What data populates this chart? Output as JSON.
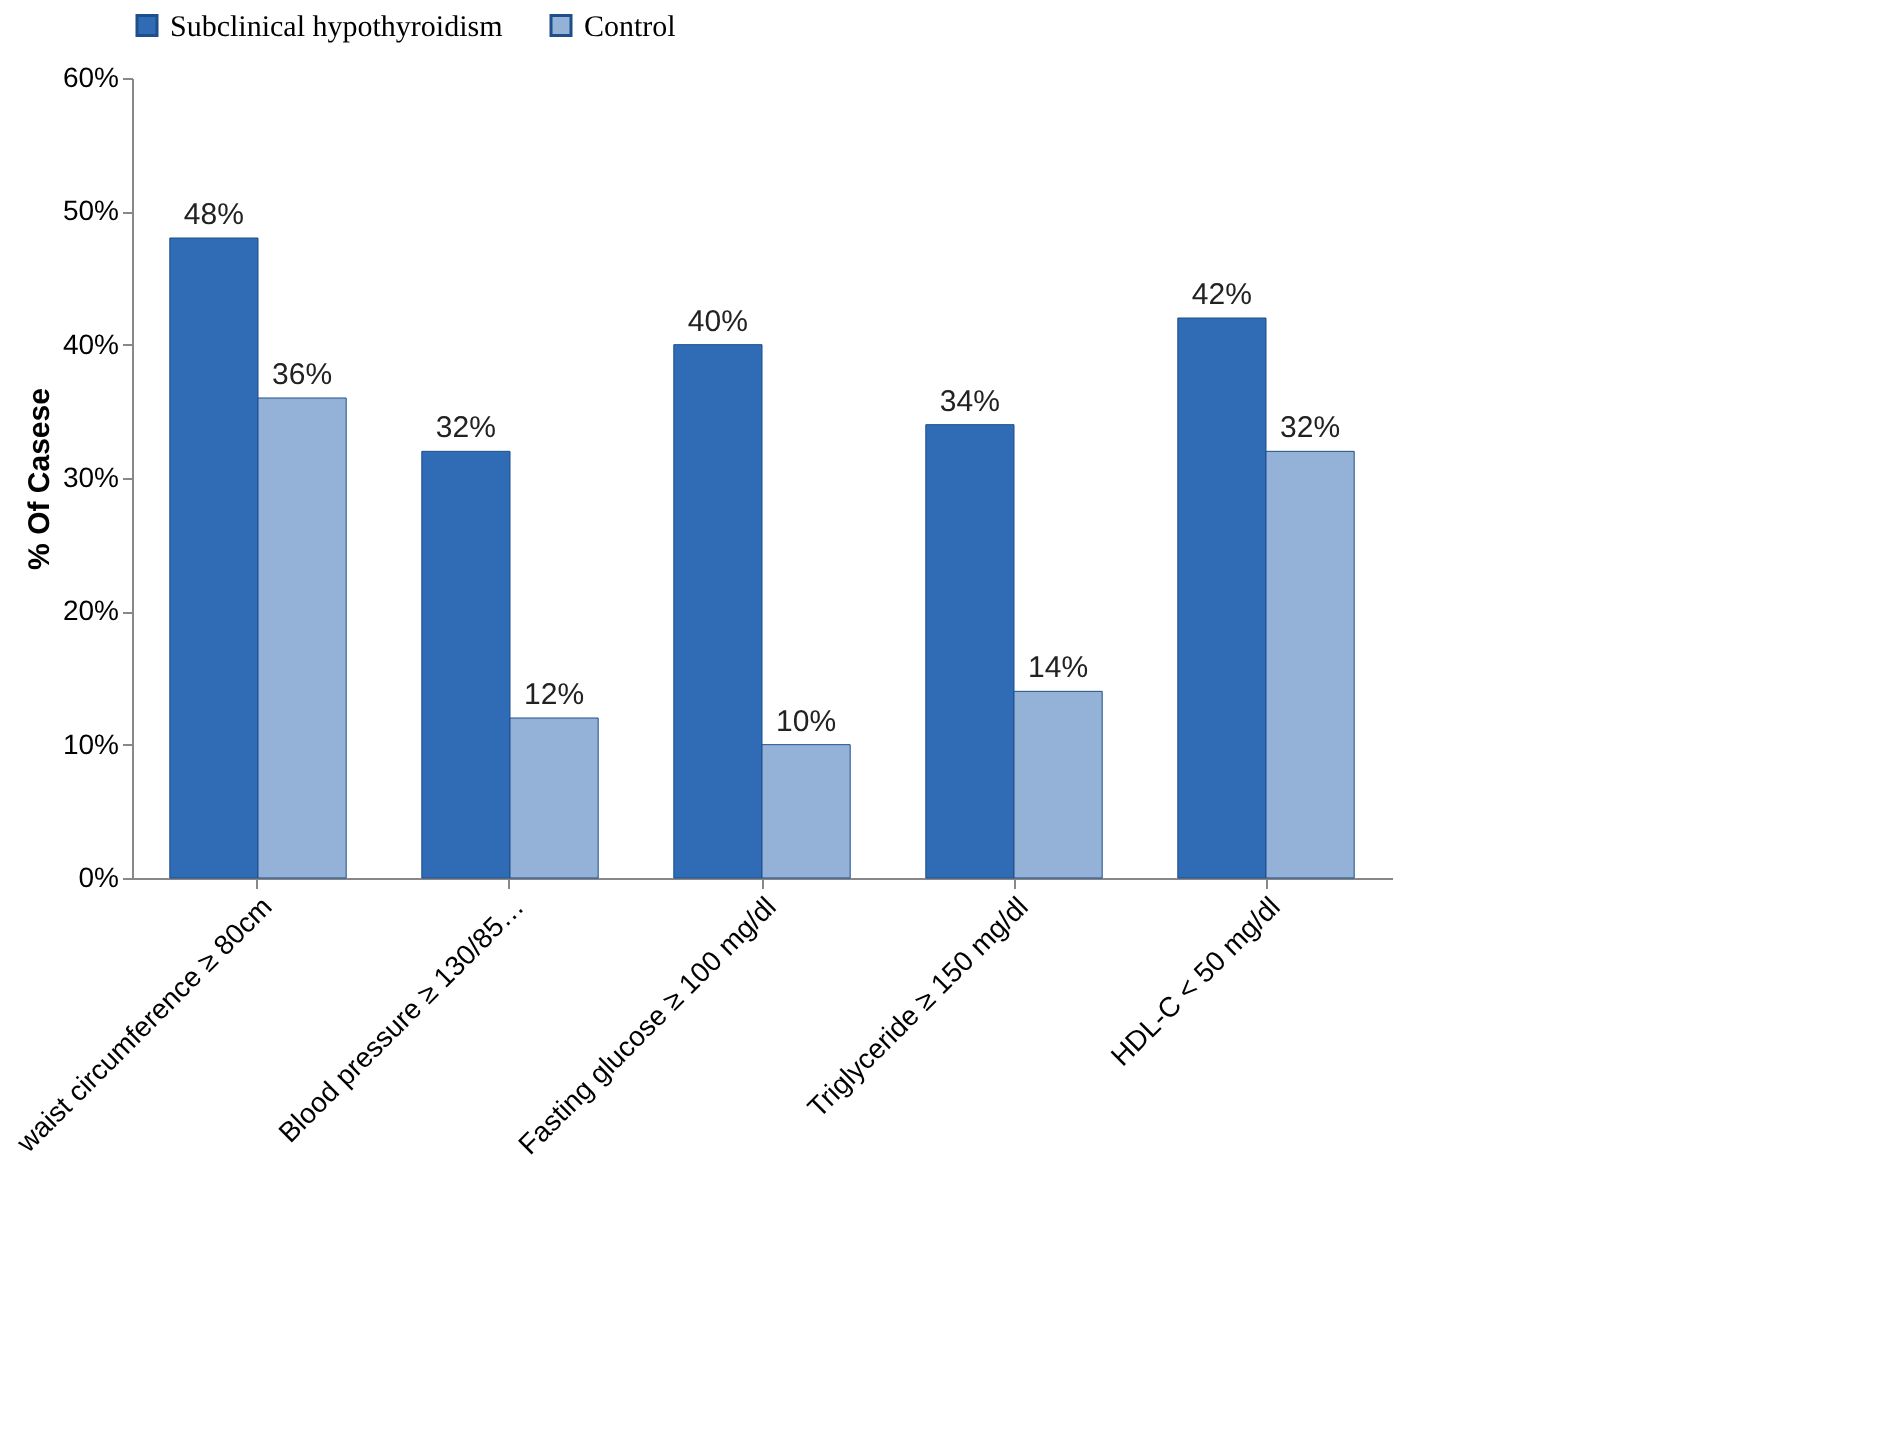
{
  "chart_data": {
    "type": "bar",
    "ylabel": "% Of Casese",
    "categories": [
      "waist circumference ≥ 80cm",
      "Blood pressure ≥ 130/85…",
      "Fasting glucose ≥ 100 mg/dl",
      "Triglyceride ≥ 150 mg/dl",
      "HDL-C < 50 mg/dl"
    ],
    "series": [
      {
        "name": "Subclinical hypothyroidism",
        "color": "#2f6cb5",
        "values": [
          48,
          32,
          40,
          34,
          42
        ],
        "value_labels": [
          "48%",
          "32%",
          "40%",
          "34%",
          "42%"
        ]
      },
      {
        "name": "Control",
        "color": "#94b2d8",
        "values": [
          36,
          12,
          10,
          14,
          32
        ],
        "value_labels": [
          "36%",
          "12%",
          "10%",
          "14%",
          "32%"
        ]
      }
    ],
    "ylim": [
      0,
      60
    ],
    "yticks": [
      {
        "value": 0,
        "label": "0%"
      },
      {
        "value": 10,
        "label": "10%"
      },
      {
        "value": 20,
        "label": "20%"
      },
      {
        "value": 30,
        "label": "30%"
      },
      {
        "value": 40,
        "label": "40%"
      },
      {
        "value": 50,
        "label": "50%"
      },
      {
        "value": 60,
        "label": "60%"
      }
    ],
    "grid": false,
    "legend": "top"
  }
}
